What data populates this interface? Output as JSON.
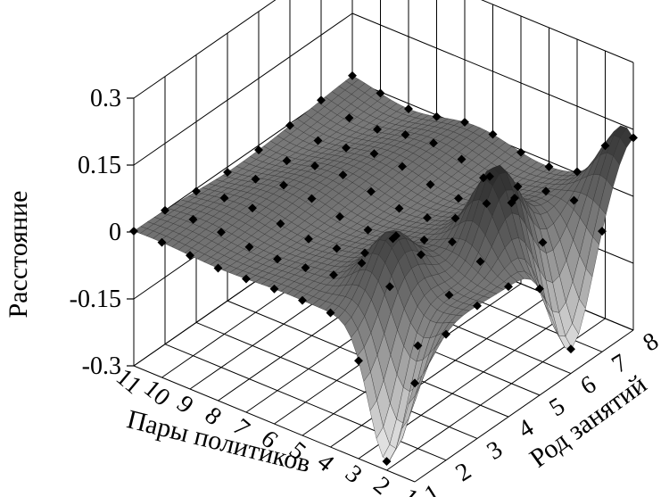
{
  "chart_data": {
    "type": "surface3d",
    "title": "",
    "zlabel": "Расстояние",
    "xlabel": "Пары политиков",
    "ylabel": "Род занятий",
    "zlim": [
      -0.3,
      0.3
    ],
    "z_ticks": [
      "0.3",
      "0.15",
      "0",
      "-0.15",
      "-0.3"
    ],
    "x_ticks": [
      "11",
      "10",
      "9",
      "8",
      "7",
      "6",
      "5",
      "4",
      "3",
      "2",
      "1"
    ],
    "y_ticks": [
      "1",
      "2",
      "3",
      "4",
      "5",
      "6",
      "7",
      "8"
    ],
    "grid": true,
    "colormap": "grayscale (dark = high)",
    "marker_color": "#000000",
    "peaks": [
      {
        "pair": 3.5,
        "occupation": 2.5,
        "distance": 0.12
      },
      {
        "pair": 2.5,
        "occupation": 5.0,
        "distance": 0.17
      },
      {
        "pair": 1.3,
        "occupation": 8.0,
        "distance": 0.14
      }
    ],
    "troughs": [
      {
        "pair": 2.0,
        "occupation": 1.0,
        "distance": -0.28
      },
      {
        "pair": 1.0,
        "occupation": 6.0,
        "distance": -0.24
      }
    ]
  }
}
